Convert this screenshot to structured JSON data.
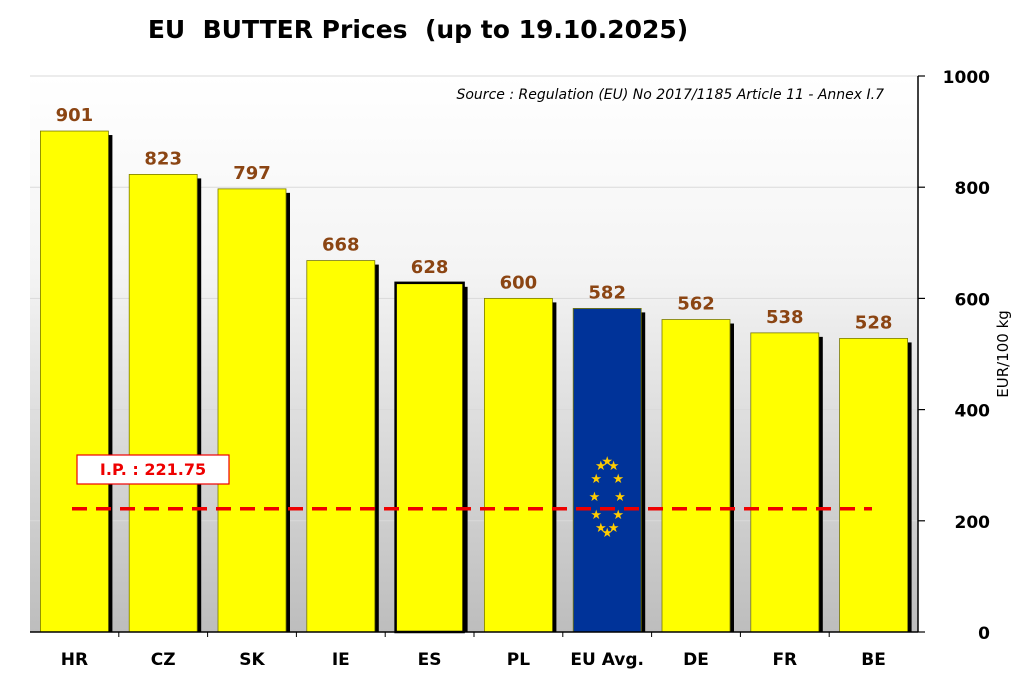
{
  "chart_data": {
    "type": "bar",
    "title": "EU  BUTTER Prices  (up to 19.10.2025)",
    "source": "Source : Regulation (EU) No 2017/1185 Article 11 - Annex I.7",
    "ylabel": "EUR/100 kg",
    "ylim": [
      0,
      1000
    ],
    "yticks": [
      0,
      200,
      400,
      600,
      800,
      1000
    ],
    "categories": [
      "HR",
      "CZ",
      "SK",
      "IE",
      "ES",
      "PL",
      "EU Avg.",
      "DE",
      "FR",
      "BE"
    ],
    "values": [
      901,
      823,
      797,
      668,
      628,
      600,
      582,
      562,
      538,
      528
    ],
    "highlight_category": "EU Avg.",
    "outlined_category": "ES",
    "reference_line": {
      "label": "I.P. : 221.75",
      "value": 221.75
    },
    "colors": {
      "bar": "#ffff00",
      "eu_bar": "#003399",
      "eu_stars": "#ffcc00",
      "value_label": "#8b4513",
      "reference": "#ee0000",
      "shadow": "#000000"
    }
  }
}
